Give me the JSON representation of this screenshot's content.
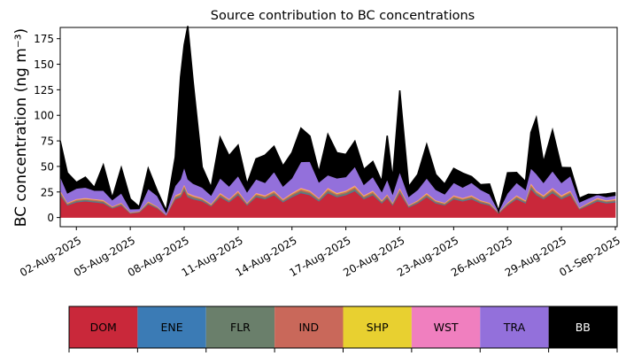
{
  "chart_data": {
    "type": "area",
    "stacked": true,
    "title": "Source contribution to BC concentrations",
    "ylabel": "BC concentration (ng m⁻³)",
    "xlabel": "",
    "x_unit": "days since 2025-08-01",
    "xlim": [
      0.1,
      31.1
    ],
    "ylim": [
      -9,
      186
    ],
    "yticks": [
      0,
      25,
      50,
      75,
      100,
      125,
      150,
      175
    ],
    "xticks": [
      {
        "x": 1,
        "label": "02-Aug-2025"
      },
      {
        "x": 4,
        "label": "05-Aug-2025"
      },
      {
        "x": 7,
        "label": "08-Aug-2025"
      },
      {
        "x": 10,
        "label": "11-Aug-2025"
      },
      {
        "x": 13,
        "label": "14-Aug-2025"
      },
      {
        "x": 16,
        "label": "17-Aug-2025"
      },
      {
        "x": 19,
        "label": "20-Aug-2025"
      },
      {
        "x": 22,
        "label": "23-Aug-2025"
      },
      {
        "x": 25,
        "label": "26-Aug-2025"
      },
      {
        "x": 28,
        "label": "29-Aug-2025"
      },
      {
        "x": 31,
        "label": "01-Sep-2025"
      }
    ],
    "x": [
      0.1,
      0.5,
      1,
      1.5,
      2,
      2.5,
      3,
      3.5,
      4,
      4.5,
      5,
      5.5,
      6,
      6.5,
      6.8,
      7,
      7.2,
      7.5,
      8,
      8.5,
      9,
      9.5,
      10,
      10.5,
      11,
      11.5,
      12,
      12.5,
      13,
      13.5,
      14,
      14.5,
      15,
      15.5,
      16,
      16.5,
      17,
      17.5,
      18,
      18.3,
      18.6,
      19,
      19.5,
      20,
      20.5,
      21,
      21.5,
      22,
      22.5,
      23,
      23.5,
      24,
      24.5,
      25,
      25.5,
      26,
      26.3,
      26.6,
      27,
      27.5,
      28,
      28.5,
      29,
      29.5,
      30,
      30.5,
      31
    ],
    "series": [
      {
        "name": "DOM",
        "color": "#c9283a",
        "values": [
          22,
          12,
          15,
          16,
          15,
          14,
          9,
          12,
          4,
          5,
          13,
          9,
          2,
          18,
          20,
          27,
          20,
          18,
          16,
          11,
          20,
          15,
          22,
          12,
          20,
          18,
          22,
          15,
          20,
          24,
          22,
          16,
          24,
          20,
          22,
          26,
          18,
          22,
          14,
          19,
          12,
          24,
          10,
          14,
          20,
          14,
          12,
          18,
          16,
          18,
          14,
          12,
          4,
          12,
          18,
          14,
          28,
          22,
          18,
          24,
          18,
          22,
          8,
          12,
          16,
          14,
          15
        ]
      },
      {
        "name": "ENE",
        "color": "#3b7bb5",
        "values": [
          0.5,
          0.3,
          0.4,
          0.4,
          0.4,
          0.4,
          0.3,
          0.3,
          0.2,
          0.2,
          0.3,
          0.3,
          0.2,
          0.4,
          0.5,
          0.6,
          0.5,
          0.5,
          0.4,
          0.3,
          0.5,
          0.4,
          0.5,
          0.3,
          0.5,
          0.4,
          0.5,
          0.4,
          0.5,
          0.6,
          0.5,
          0.4,
          0.6,
          0.5,
          0.5,
          0.6,
          0.4,
          0.5,
          0.4,
          0.5,
          0.3,
          0.6,
          0.3,
          0.4,
          0.5,
          0.4,
          0.3,
          0.4,
          0.4,
          0.4,
          0.4,
          0.3,
          0.2,
          0.3,
          0.4,
          0.4,
          0.6,
          0.5,
          0.4,
          0.6,
          0.4,
          0.5,
          0.2,
          0.3,
          0.4,
          0.4,
          0.4
        ]
      },
      {
        "name": "FLR",
        "color": "#6a7f6b",
        "values": [
          1.5,
          0.8,
          1,
          1,
          1,
          1,
          0.6,
          0.8,
          0.3,
          0.4,
          0.9,
          0.6,
          0.2,
          1.2,
          1.3,
          1.8,
          1.3,
          1.2,
          1,
          0.7,
          1.3,
          1,
          1.4,
          0.8,
          1.3,
          1.2,
          1.4,
          1,
          1.3,
          1.6,
          1.4,
          1,
          1.6,
          1.3,
          1.4,
          1.7,
          1.2,
          1.4,
          0.9,
          1.2,
          0.8,
          1.6,
          0.7,
          0.9,
          1.3,
          0.9,
          0.8,
          1.2,
          1,
          1.2,
          0.9,
          0.8,
          0.3,
          0.8,
          1.2,
          0.9,
          1.8,
          1.4,
          1.2,
          1.6,
          1.2,
          1.4,
          0.5,
          0.8,
          1,
          0.9,
          1
        ]
      },
      {
        "name": "IND",
        "color": "#c9685a",
        "values": [
          1.5,
          0.8,
          1,
          1,
          1,
          1,
          0.6,
          0.8,
          0.3,
          0.4,
          0.9,
          0.6,
          0.2,
          1.2,
          1.3,
          1.8,
          1.3,
          1.2,
          1,
          0.7,
          1.3,
          1,
          1.4,
          0.8,
          1.3,
          1.2,
          1.4,
          1,
          1.3,
          1.6,
          1.4,
          1,
          1.6,
          1.3,
          1.4,
          1.7,
          1.2,
          1.4,
          0.9,
          1.2,
          0.8,
          1.6,
          0.7,
          0.9,
          1.3,
          0.9,
          0.8,
          1.2,
          1,
          1.2,
          0.9,
          0.8,
          0.3,
          0.8,
          1.2,
          0.9,
          1.8,
          1.4,
          1.2,
          1.6,
          1.2,
          1.4,
          0.5,
          0.8,
          1,
          0.9,
          1
        ]
      },
      {
        "name": "SHP",
        "color": "#e8d030",
        "values": [
          0.8,
          0.4,
          0.5,
          0.5,
          0.5,
          0.5,
          0.3,
          0.4,
          0.2,
          0.2,
          0.5,
          0.3,
          0.1,
          0.6,
          0.7,
          0.9,
          0.7,
          0.6,
          0.5,
          0.4,
          0.7,
          0.5,
          0.7,
          0.4,
          0.7,
          0.6,
          0.7,
          0.5,
          0.7,
          0.8,
          0.7,
          0.5,
          0.8,
          0.7,
          0.7,
          0.9,
          0.6,
          0.7,
          0.5,
          0.6,
          0.4,
          0.8,
          0.3,
          0.5,
          0.7,
          0.5,
          0.4,
          0.6,
          0.5,
          0.6,
          0.5,
          0.4,
          0.2,
          0.4,
          0.6,
          0.5,
          0.9,
          0.7,
          0.6,
          0.8,
          0.6,
          0.7,
          0.3,
          0.4,
          0.5,
          0.5,
          0.5
        ]
      },
      {
        "name": "WST",
        "color": "#f07fbf",
        "values": [
          0.7,
          0.4,
          0.5,
          0.5,
          0.5,
          0.5,
          0.3,
          0.4,
          0.2,
          0.2,
          0.4,
          0.3,
          0.1,
          0.6,
          0.6,
          0.8,
          0.6,
          0.6,
          0.5,
          0.4,
          0.6,
          0.5,
          0.7,
          0.4,
          0.6,
          0.6,
          0.7,
          0.5,
          0.6,
          0.8,
          0.7,
          0.5,
          0.8,
          0.6,
          0.7,
          0.8,
          0.6,
          0.7,
          0.4,
          0.6,
          0.4,
          0.8,
          0.3,
          0.4,
          0.6,
          0.4,
          0.4,
          0.6,
          0.5,
          0.6,
          0.4,
          0.4,
          0.2,
          0.4,
          0.6,
          0.4,
          0.9,
          0.7,
          0.6,
          0.8,
          0.6,
          0.7,
          0.3,
          0.4,
          0.5,
          0.4,
          0.5
        ]
      },
      {
        "name": "TRA",
        "color": "#9370db",
        "values": [
          13,
          9,
          10,
          10,
          8,
          9,
          6,
          9,
          3,
          2,
          12,
          10,
          2,
          9,
          13,
          16,
          13,
          11,
          10,
          8,
          14,
          12,
          14,
          10,
          13,
          12,
          18,
          12,
          14,
          25,
          28,
          15,
          12,
          14,
          13,
          18,
          10,
          13,
          8,
          14,
          8,
          15,
          8,
          10,
          14,
          10,
          8,
          12,
          10,
          12,
          10,
          8,
          1,
          9,
          12,
          10,
          14,
          16,
          12,
          16,
          12,
          14,
          5,
          4,
          3,
          3,
          3
        ]
      },
      {
        "name": "BB",
        "color": "#000000",
        "values": [
          35,
          20,
          6,
          10,
          3,
          25,
          2,
          25,
          10,
          2,
          20,
          5,
          2,
          28,
          100,
          120,
          150,
          100,
          20,
          8,
          40,
          30,
          30,
          8,
          20,
          27,
          25,
          20,
          25,
          33,
          25,
          10,
          40,
          25,
          22,
          25,
          15,
          15,
          10,
          43,
          15,
          80,
          10,
          15,
          33,
          15,
          10,
          14,
          14,
          6,
          5,
          10,
          0,
          20,
          10,
          8,
          35,
          55,
          20,
          40,
          15,
          8,
          4,
          4,
          0,
          3,
          3
        ]
      }
    ]
  }
}
